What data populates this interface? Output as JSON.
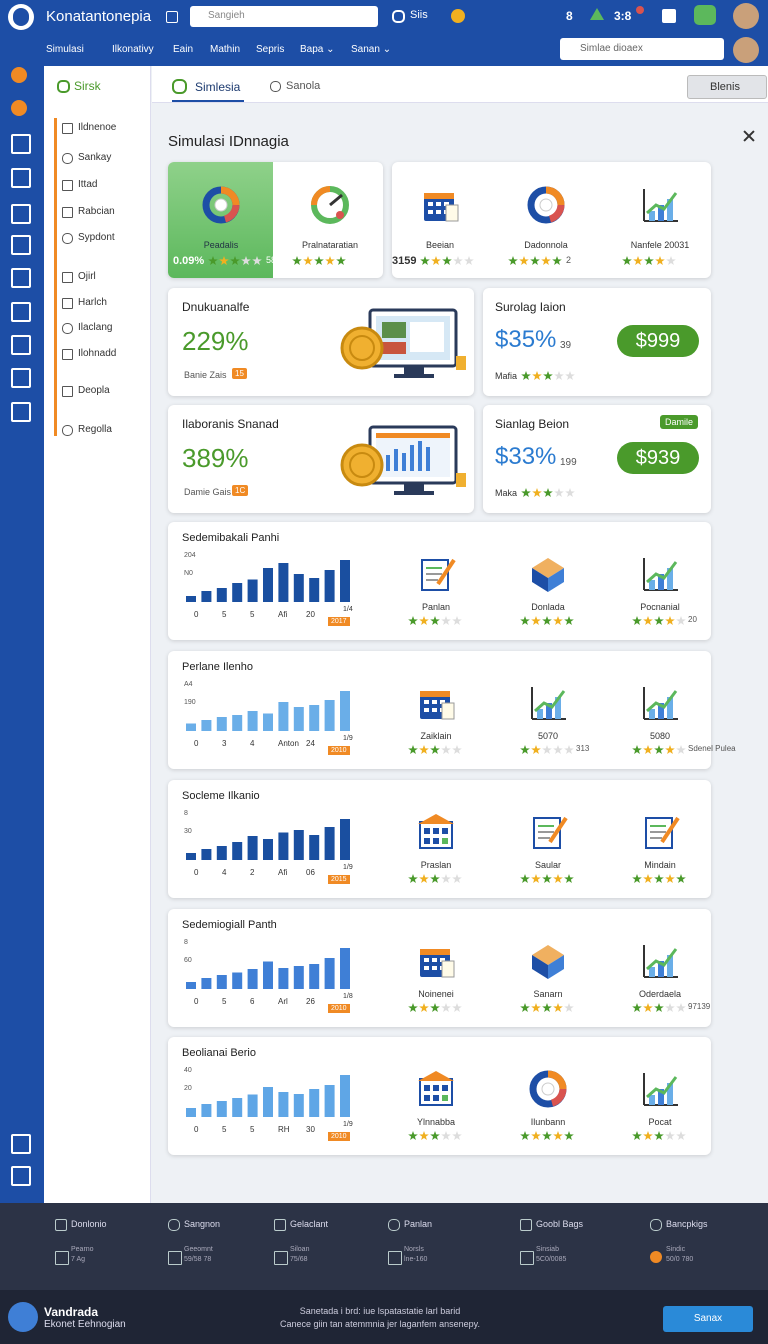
{
  "header": {
    "title": "Konatantonepia",
    "search": "Sangieh",
    "search_button": "Siis",
    "badge": "3:8",
    "user_count": "8",
    "nav": [
      "Simulasi",
      "Ilkonativy",
      "Eain",
      "Mathin",
      "Sepris",
      "Bapa ⌄",
      "Sanan ⌄"
    ],
    "search2": "Simlae dioaex"
  },
  "sidebar": {
    "tab": "Sirsk",
    "items": [
      "Ildnenoe",
      "Sankay",
      "Ittad",
      "Rabcian",
      "Sypdont",
      "Ojirl",
      "Harlch",
      "Ilaclang",
      "Ilohnadd",
      "Deopla",
      "Regolla"
    ]
  },
  "tabs": [
    "Simlesia",
    "Sanola"
  ],
  "tab_button": "Blenis",
  "heading": "Simulasi IDnnagia",
  "summary": [
    {
      "label": "Peadalis",
      "value": "0.09%",
      "extra": "58",
      "rating": 3,
      "icon": "donut"
    },
    {
      "label": "Pralnataratian",
      "rating": 5,
      "icon": "gauge"
    },
    {
      "label": "Beeian",
      "value": "3159",
      "rating": 3,
      "icon": "calendar"
    },
    {
      "label": "Dadonnola",
      "extra": "2",
      "rating": 5,
      "icon": "donut"
    },
    {
      "label": "Nanfele 20031",
      "rating": 4,
      "icon": "chart"
    }
  ],
  "stats": [
    {
      "title": "Dnukuanalfe",
      "value": "229%",
      "note": "Banie Zais",
      "badge": "15"
    },
    {
      "title": "Ilaboranis Snanad",
      "value": "389%",
      "note": "Damie Gais",
      "badge": "1C"
    }
  ],
  "offers": [
    {
      "title": "Surolag Iaion",
      "value": "$35%",
      "sub": "39",
      "price": "$999",
      "note": "Mafia",
      "rating": 3
    },
    {
      "title": "Sianlag Beion",
      "value": "$33%",
      "sub": "199",
      "price": "$939",
      "note": "Maka",
      "rating": 3,
      "tag": "Damile"
    }
  ],
  "charts": [
    {
      "title": "Sedemibakali Panhi",
      "ytick_labels": [
        "204",
        "N0"
      ],
      "xtick_labels": [
        "0",
        "5",
        "5",
        "Afi",
        "20"
      ],
      "end_label": "1/4",
      "badge": "2017",
      "color": "#1a4fa0",
      "ylim": [
        0,
        100
      ],
      "bars": [
        12,
        22,
        28,
        38,
        45,
        68,
        78,
        56,
        48,
        64,
        84
      ],
      "items": [
        {
          "label": "Panlan",
          "rating": 3,
          "icon": "doc"
        },
        {
          "label": "Donlada",
          "rating": 5,
          "icon": "box"
        },
        {
          "label": "Pocnanial",
          "extra": "20",
          "rating": 4,
          "icon": "chart"
        }
      ]
    },
    {
      "title": "Perlane Ilenho",
      "ytick_labels": [
        "A4",
        "190"
      ],
      "xtick_labels": [
        "0",
        "3",
        "4",
        "Anton",
        "24"
      ],
      "end_label": "1/9",
      "badge": "2010",
      "color": "#6aaee8",
      "ylim": [
        0,
        100
      ],
      "bars": [
        15,
        22,
        28,
        32,
        40,
        35,
        58,
        48,
        52,
        62,
        80
      ],
      "items": [
        {
          "label": "Zaiklain",
          "rating": 3,
          "icon": "calendar"
        },
        {
          "label": "5070",
          "extra": "313",
          "rating": 2,
          "icon": "chart"
        },
        {
          "label": "5080",
          "extra": "Sdenel Pulea",
          "rating": 4,
          "icon": "chart"
        }
      ]
    },
    {
      "title": "Socleme Ilkanio",
      "ytick_labels": [
        "8",
        "30"
      ],
      "xtick_labels": [
        "0",
        "4",
        "2",
        "Afi",
        "06"
      ],
      "end_label": "1/9",
      "badge": "2015",
      "color": "#1a4fa0",
      "ylim": [
        0,
        100
      ],
      "bars": [
        14,
        22,
        28,
        36,
        48,
        42,
        55,
        60,
        50,
        66,
        82
      ],
      "items": [
        {
          "label": "Praslan",
          "rating": 3,
          "icon": "grid"
        },
        {
          "label": "Saular",
          "rating": 5,
          "icon": "doc"
        },
        {
          "label": "Mindain",
          "rating": 5,
          "icon": "doc"
        }
      ]
    },
    {
      "title": "Sedemiogiall Panth",
      "ytick_labels": [
        "8",
        "60"
      ],
      "xtick_labels": [
        "0",
        "5",
        "6",
        "Arl",
        "26"
      ],
      "end_label": "1/8",
      "badge": "2010",
      "color": "#3f7fd6",
      "ylim": [
        0,
        100
      ],
      "bars": [
        14,
        22,
        28,
        33,
        40,
        55,
        42,
        46,
        50,
        62,
        82
      ],
      "items": [
        {
          "label": "Noinenei",
          "rating": 3,
          "icon": "calendar"
        },
        {
          "label": "Sanarn",
          "rating": 4,
          "icon": "box"
        },
        {
          "label": "Oderdaela",
          "extra": "97139",
          "rating": 3,
          "icon": "chart"
        }
      ]
    },
    {
      "title": "Beolianai Berio",
      "ytick_labels": [
        "40",
        "20"
      ],
      "xtick_labels": [
        "0",
        "5",
        "5",
        "RH",
        "30"
      ],
      "end_label": "1/9",
      "badge": "2010",
      "color": "#5fa6e6",
      "ylim": [
        0,
        100
      ],
      "bars": [
        18,
        26,
        32,
        38,
        45,
        60,
        50,
        46,
        56,
        64,
        84
      ],
      "items": [
        {
          "label": "Ylnnabba",
          "rating": 3,
          "icon": "grid"
        },
        {
          "label": "Ilunbann",
          "rating": 5,
          "icon": "donut"
        },
        {
          "label": "Pocat",
          "rating": 3,
          "icon": "chart"
        }
      ]
    }
  ],
  "footer": [
    {
      "title": "Donlonio",
      "line1": "Pearno",
      "line2": "7 Ag"
    },
    {
      "title": "Sangnon",
      "line1": "Geeomnt",
      "line2": "59/58 78"
    },
    {
      "title": "Gelaclant",
      "line1": "Siloan",
      "line2": "75/68"
    },
    {
      "title": "Panlan",
      "line1": "Norsls",
      "line2": "lne-160"
    },
    {
      "title": "Goobl Bags",
      "line1": "Sinsiab",
      "line2": "5C0/0085"
    },
    {
      "title": "Bancpkigs",
      "line1": "Sindic",
      "line2": "50/0 780"
    }
  ],
  "bottom": {
    "name": "Vandrada",
    "subtitle": "Ekonet Eehnogian",
    "text": [
      "Sanetada i brd: iue lspatastatie larl barid",
      "Canece giin tan atemmnia jer laganfem ansenepy."
    ],
    "button": "Sanax"
  }
}
